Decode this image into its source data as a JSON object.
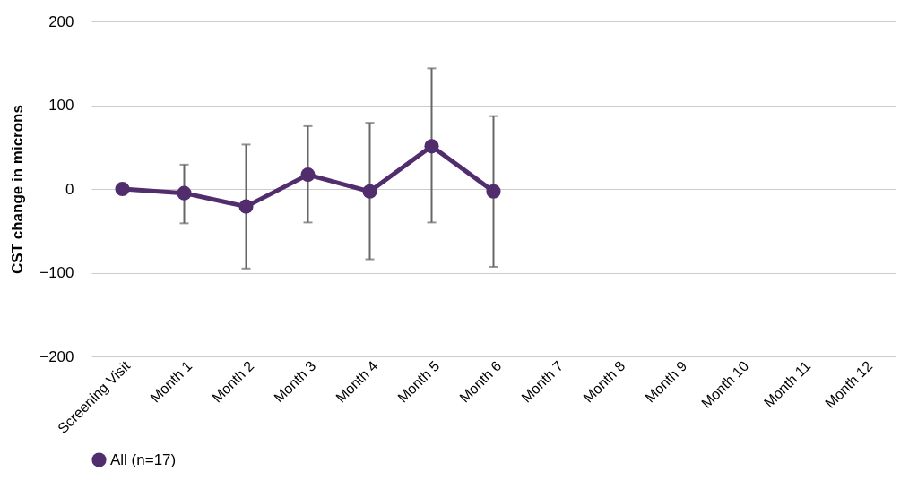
{
  "chart_data": {
    "type": "line",
    "ylabel": "CST change in microns",
    "categories": [
      "Screening Visit",
      "Month 1",
      "Month 2",
      "Month 3",
      "Month 4",
      "Month 5",
      "Month 6",
      "Month 7",
      "Month 8",
      "Month 9",
      "Month 10",
      "Month 11",
      "Month 12"
    ],
    "series": [
      {
        "name": "All (n=17)",
        "color": "#522d6e",
        "values": [
          0,
          -5,
          -21,
          17,
          -3,
          51,
          -3,
          null,
          null,
          null,
          null,
          null,
          null
        ],
        "errors": [
          null,
          [
            -41,
            29
          ],
          [
            -95,
            53
          ],
          [
            -40,
            75
          ],
          [
            -84,
            79
          ],
          [
            -40,
            144
          ],
          [
            -93,
            87
          ],
          null,
          null,
          null,
          null,
          null,
          null
        ]
      }
    ],
    "ylim": [
      -200,
      200
    ],
    "yticks": [
      -200,
      -100,
      0,
      100,
      200
    ],
    "grid": "y",
    "legend": "bottom",
    "marker": "circle",
    "line_style": "solid"
  }
}
